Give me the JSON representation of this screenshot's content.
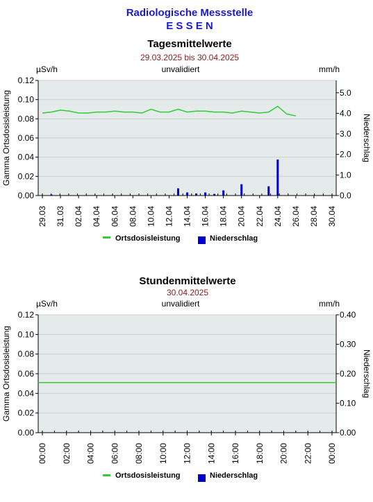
{
  "header": {
    "title": "Radiologische Messstelle",
    "station": "E S S E N"
  },
  "colors": {
    "title": "#1a1acc",
    "date": "#8b1a1a",
    "plot_bg": "#e4ebea",
    "line": "#33cc33",
    "bars": "#0000cc"
  },
  "chart_data": [
    {
      "type": "line",
      "title": "Tagesmittelwerte",
      "subtitle": "29.03.2025 bis 30.04.2025",
      "status": "unvalidiert",
      "left_unit": "µSv/h",
      "right_unit": "mm/h",
      "ylabel": "Gamma Ortsdosisleistung",
      "y2label": "Niederschlag",
      "ylim": [
        0,
        0.12
      ],
      "y2lim": [
        0,
        5.6
      ],
      "yticks": [
        "0.00",
        "0.02",
        "0.04",
        "0.06",
        "0.08",
        "0.10",
        "0.12"
      ],
      "y2ticks": [
        "0.0",
        "1.0",
        "2.0",
        "3.0",
        "4.0",
        "5.0"
      ],
      "xticks": [
        "29.03",
        "31.03",
        "02.04",
        "04.04",
        "06.04",
        "08.04",
        "10.04",
        "12.04",
        "14.04",
        "16.04",
        "18.04",
        "20.04",
        "22.04",
        "24.04",
        "26.04",
        "28.04",
        "30.04"
      ],
      "grid": true,
      "legend": [
        "Ortsdosisleistung",
        "Niederschlag"
      ],
      "series": [
        {
          "name": "Ortsdosisleistung",
          "axis": "left",
          "x": [
            "29.03",
            "30.03",
            "31.03",
            "01.04",
            "02.04",
            "03.04",
            "04.04",
            "05.04",
            "06.04",
            "07.04",
            "08.04",
            "09.04",
            "10.04",
            "11.04",
            "12.04",
            "13.04",
            "14.04",
            "15.04",
            "16.04",
            "17.04",
            "18.04",
            "19.04",
            "20.04",
            "21.04",
            "22.04",
            "23.04",
            "24.04",
            "25.04",
            "26.04"
          ],
          "values": [
            0.086,
            0.087,
            0.089,
            0.088,
            0.086,
            0.086,
            0.087,
            0.087,
            0.088,
            0.087,
            0.087,
            0.086,
            0.09,
            0.087,
            0.087,
            0.09,
            0.087,
            0.088,
            0.088,
            0.087,
            0.087,
            0.086,
            0.088,
            0.087,
            0.086,
            0.087,
            0.093,
            0.085,
            0.083
          ]
        },
        {
          "name": "Niederschlag",
          "axis": "right",
          "type": "bar",
          "x": [
            "30.03",
            "13.04",
            "14.04",
            "15.04",
            "16.04",
            "17.04",
            "18.04",
            "20.04",
            "23.04",
            "24.04"
          ],
          "values": [
            0.05,
            0.35,
            0.15,
            0.1,
            0.15,
            0.08,
            0.25,
            0.55,
            0.45,
            1.75
          ]
        }
      ]
    },
    {
      "type": "line",
      "title": "Stundenmittelwerte",
      "subtitle": "30.04.2025",
      "status": "unvalidiert",
      "left_unit": "µSv/h",
      "right_unit": "mm/h",
      "ylabel": "Gamma Ortsdosisleistung",
      "y2label": "Niederschlag",
      "ylim": [
        0,
        0.12
      ],
      "y2lim": [
        0,
        0.4
      ],
      "yticks": [
        "0.00",
        "0.02",
        "0.04",
        "0.06",
        "0.08",
        "0.10",
        "0.12"
      ],
      "y2ticks": [
        "0.00",
        "0.10",
        "0.20",
        "0.30",
        "0.40"
      ],
      "xticks": [
        "00:00",
        "02:00",
        "04:00",
        "06:00",
        "08:00",
        "10:00",
        "12:00",
        "14:00",
        "16:00",
        "18:00",
        "20:00",
        "22:00",
        "00:00"
      ],
      "grid": true,
      "legend": [
        "Ortsdosisleistung",
        "Niederschlag"
      ],
      "series": [
        {
          "name": "Ortsdosisleistung",
          "axis": "left",
          "x": [
            "00:00",
            "24:00"
          ],
          "values": [
            0.051,
            0.051
          ]
        }
      ]
    }
  ]
}
